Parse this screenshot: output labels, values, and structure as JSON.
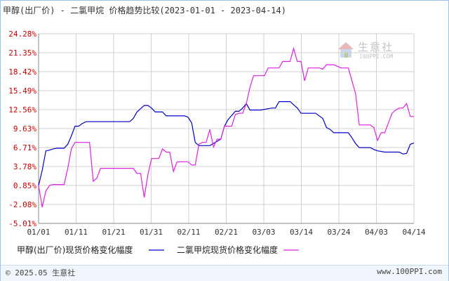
{
  "header": {
    "title": "甲醇(出厂价) - 二氯甲烷 价格趋势比较(2023-01-01 - 2023-04-14)"
  },
  "watermark": {
    "name": "生意社",
    "url": "100PPI.COM"
  },
  "footer": {
    "copyright": "© 2025.05 生意社",
    "site": "www.100PPI.com"
  },
  "colors": {
    "series1": "#0000cc",
    "series2": "#e020e0",
    "grid": "#d0d0d0",
    "axis": "#888888",
    "ytick": "#cc0000"
  },
  "chart_data": {
    "type": "line",
    "ylim": [
      -5.01,
      24.28
    ],
    "yticks": [
      "24.28%",
      "21.35%",
      "18.42%",
      "15.49%",
      "12.56%",
      "9.63%",
      "6.71%",
      "3.78%",
      "0.85%",
      "-2.08%",
      "-5.01%"
    ],
    "xticks": [
      "01/01",
      "01/11",
      "01/21",
      "01/31",
      "02/11",
      "02/21",
      "03/03",
      "03/14",
      "03/24",
      "04/03",
      "04/14"
    ],
    "grid": true,
    "legend_position": "bottom",
    "series": [
      {
        "name": "甲醇(出厂价)现货价格变化幅度",
        "color": "#0000cc",
        "x": [
          "2023-01-01",
          "2023-01-02",
          "2023-01-03",
          "2023-01-04",
          "2023-01-05",
          "2023-01-06",
          "2023-01-08",
          "2023-01-09",
          "2023-01-10",
          "2023-01-11",
          "2023-01-12",
          "2023-01-13",
          "2023-01-14",
          "2023-01-16",
          "2023-01-17",
          "2023-01-20",
          "2023-01-23",
          "2023-01-26",
          "2023-01-27",
          "2023-01-28",
          "2023-01-30",
          "2023-01-31",
          "2023-02-01",
          "2023-02-02",
          "2023-02-03",
          "2023-02-04",
          "2023-02-05",
          "2023-02-06",
          "2023-02-08",
          "2023-02-09",
          "2023-02-10",
          "2023-02-11",
          "2023-02-12",
          "2023-02-13",
          "2023-02-14",
          "2023-02-16",
          "2023-02-17",
          "2023-02-20",
          "2023-02-21",
          "2023-02-22",
          "2023-02-24",
          "2023-02-25",
          "2023-02-26",
          "2023-02-27",
          "2023-02-28",
          "2023-03-02",
          "2023-03-03",
          "2023-03-06",
          "2023-03-07",
          "2023-03-08",
          "2023-03-10",
          "2023-03-11",
          "2023-03-13",
          "2023-03-14",
          "2023-03-17",
          "2023-03-18",
          "2023-03-20",
          "2023-03-21",
          "2023-03-22",
          "2023-03-23",
          "2023-03-24",
          "2023-03-27",
          "2023-03-28",
          "2023-03-29",
          "2023-03-30",
          "2023-03-31",
          "2023-04-02",
          "2023-04-03",
          "2023-04-04",
          "2023-04-06",
          "2023-04-07",
          "2023-04-09",
          "2023-04-10",
          "2023-04-11",
          "2023-04-12",
          "2023-04-13",
          "2023-04-14"
        ],
        "y": [
          0.85,
          3.2,
          6.2,
          6.3,
          6.5,
          6.6,
          6.6,
          7.2,
          8.5,
          10.0,
          10.0,
          10.4,
          10.7,
          10.7,
          10.7,
          10.7,
          10.7,
          10.7,
          11.2,
          12.2,
          13.2,
          13.2,
          12.8,
          12.2,
          12.2,
          12.2,
          11.6,
          11.6,
          11.6,
          11.6,
          11.6,
          11.4,
          10.5,
          7.5,
          7.0,
          7.0,
          7.0,
          8.0,
          10.0,
          11.0,
          12.3,
          12.3,
          12.8,
          13.5,
          12.5,
          12.5,
          12.5,
          12.8,
          12.8,
          13.8,
          13.8,
          13.8,
          12.8,
          12.0,
          12.0,
          12.0,
          11.2,
          9.8,
          9.5,
          9.0,
          9.0,
          9.0,
          8.2,
          7.3,
          6.7,
          6.7,
          6.7,
          6.4,
          6.2,
          6.0,
          6.0,
          6.0,
          6.0,
          5.7,
          5.8,
          7.2,
          7.4
        ]
      },
      {
        "name": "二氯甲烷现货价格变化幅度",
        "color": "#e020e0",
        "x": [
          "2023-01-01",
          "2023-01-02",
          "2023-01-03",
          "2023-01-04",
          "2023-01-05",
          "2023-01-07",
          "2023-01-08",
          "2023-01-09",
          "2023-01-10",
          "2023-01-11",
          "2023-01-12",
          "2023-01-15",
          "2023-01-16",
          "2023-01-17",
          "2023-01-18",
          "2023-01-19",
          "2023-01-21",
          "2023-01-24",
          "2023-01-27",
          "2023-01-28",
          "2023-01-29",
          "2023-01-30",
          "2023-01-31",
          "2023-02-01",
          "2023-02-02",
          "2023-02-03",
          "2023-02-04",
          "2023-02-05",
          "2023-02-06",
          "2023-02-07",
          "2023-02-08",
          "2023-02-09",
          "2023-02-10",
          "2023-02-11",
          "2023-02-12",
          "2023-02-13",
          "2023-02-14",
          "2023-02-15",
          "2023-02-16",
          "2023-02-17",
          "2023-02-18",
          "2023-02-19",
          "2023-02-20",
          "2023-02-21",
          "2023-02-22",
          "2023-02-23",
          "2023-02-24",
          "2023-02-25",
          "2023-02-26",
          "2023-02-27",
          "2023-02-28",
          "2023-03-01",
          "2023-03-02",
          "2023-03-03",
          "2023-03-04",
          "2023-03-05",
          "2023-03-06",
          "2023-03-07",
          "2023-03-08",
          "2023-03-09",
          "2023-03-10",
          "2023-03-11",
          "2023-03-12",
          "2023-03-13",
          "2023-03-14",
          "2023-03-15",
          "2023-03-16",
          "2023-03-17",
          "2023-03-19",
          "2023-03-20",
          "2023-03-21",
          "2023-03-23",
          "2023-03-25",
          "2023-03-26",
          "2023-03-27",
          "2023-03-29",
          "2023-03-30",
          "2023-03-31",
          "2023-04-01",
          "2023-04-02",
          "2023-04-03",
          "2023-04-04",
          "2023-04-05",
          "2023-04-06",
          "2023-04-08",
          "2023-04-09",
          "2023-04-10",
          "2023-04-11",
          "2023-04-12",
          "2023-04-13",
          "2023-04-14"
        ],
        "y": [
          0.85,
          -2.5,
          0.0,
          0.85,
          1.0,
          1.0,
          1.0,
          3.5,
          6.5,
          7.5,
          7.5,
          7.5,
          1.5,
          2.0,
          3.5,
          3.5,
          3.5,
          3.5,
          3.5,
          2.7,
          2.7,
          -1.0,
          2.5,
          5.0,
          5.0,
          5.0,
          6.5,
          6.0,
          6.0,
          3.0,
          4.5,
          4.5,
          4.5,
          4.5,
          4.0,
          4.0,
          7.2,
          7.5,
          7.5,
          9.5,
          6.8,
          8.0,
          8.0,
          10.0,
          10.0,
          10.0,
          11.8,
          12.0,
          12.0,
          13.5,
          16.0,
          17.8,
          17.8,
          17.8,
          17.8,
          19.0,
          19.0,
          19.0,
          19.0,
          20.0,
          20.0,
          20.0,
          22.0,
          20.0,
          20.0,
          17.0,
          19.0,
          19.0,
          19.0,
          18.8,
          19.5,
          19.5,
          19.0,
          19.0,
          19.0,
          15.0,
          10.2,
          10.2,
          10.2,
          10.2,
          9.8,
          7.8,
          9.0,
          9.0,
          12.0,
          12.5,
          12.8,
          12.8,
          13.5,
          11.5,
          11.5
        ]
      }
    ]
  }
}
